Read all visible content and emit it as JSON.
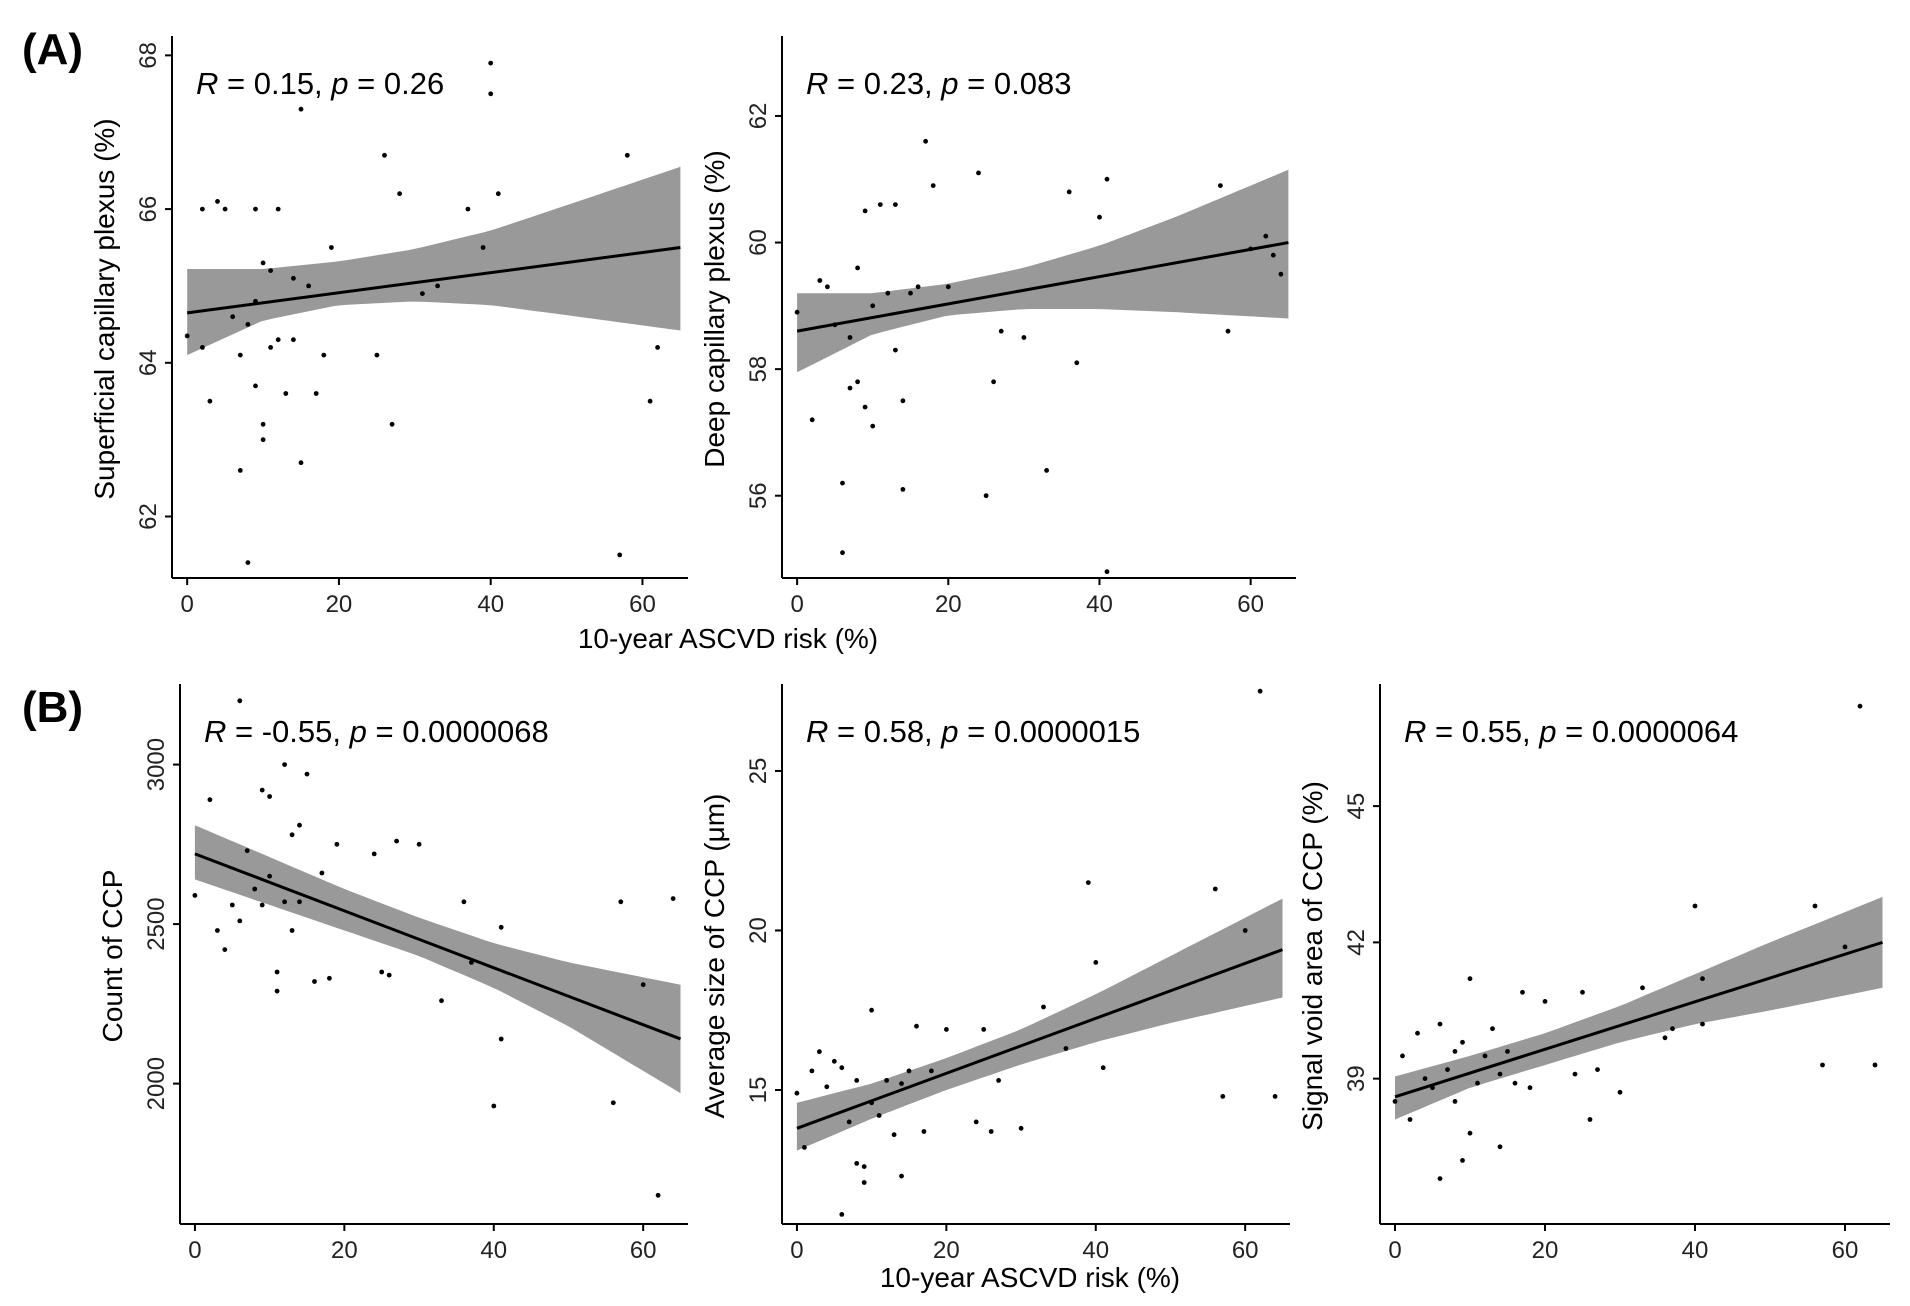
{
  "figure": {
    "panel_labels": [
      "(A)",
      "(B)"
    ],
    "shared_xlabel_A": "10-year ASCVD risk (%)",
    "shared_xlabel_B": "10-year ASCVD risk (%)",
    "colors": {
      "band": "#999999",
      "line": "#000000",
      "point": "#000000",
      "axis": "#000000"
    }
  },
  "chart_data": [
    {
      "type": "scatter",
      "panel": "A",
      "ylabel": "Superficial capillary plexus (%)",
      "xlabel": "",
      "stat": {
        "R_value": "0.15",
        "p_value": "0.26"
      },
      "xlim": [
        -2,
        66
      ],
      "ylim": [
        61.2,
        68.2
      ],
      "xticks": [
        0,
        20,
        40,
        60
      ],
      "yticks": [
        62,
        64,
        66,
        68
      ],
      "x": [
        0,
        2,
        2,
        3,
        4,
        5,
        6,
        7,
        7,
        8,
        8,
        9,
        9,
        9,
        10,
        10,
        10,
        11,
        11,
        12,
        12,
        13,
        14,
        14,
        15,
        15,
        16,
        17,
        18,
        19,
        25,
        26,
        27,
        28,
        31,
        33,
        37,
        39,
        40,
        40,
        41,
        57,
        58,
        61,
        62
      ],
      "y": [
        64.35,
        64.2,
        66.0,
        63.5,
        66.1,
        66.0,
        64.6,
        64.1,
        62.6,
        64.5,
        61.4,
        64.8,
        63.7,
        66.0,
        63.2,
        65.3,
        63.0,
        65.2,
        64.2,
        64.3,
        66.0,
        63.6,
        64.3,
        65.1,
        67.3,
        62.7,
        65.0,
        63.6,
        64.1,
        65.5,
        64.1,
        66.7,
        63.2,
        66.2,
        64.9,
        65.0,
        66.0,
        65.5,
        67.5,
        67.9,
        66.2,
        61.5,
        66.7,
        63.5,
        64.2
      ],
      "fit": {
        "x": [
          0,
          65
        ],
        "y": [
          64.65,
          65.5
        ]
      },
      "band": {
        "x": [
          0,
          10,
          20,
          30,
          40,
          50,
          65
        ],
        "lower": [
          64.1,
          64.55,
          64.75,
          64.8,
          64.75,
          64.62,
          64.42
        ],
        "upper": [
          65.22,
          65.22,
          65.32,
          65.48,
          65.72,
          66.05,
          66.55
        ]
      }
    },
    {
      "type": "scatter",
      "panel": "A",
      "ylabel": "Deep capillary plexus (%)",
      "xlabel": "",
      "stat": {
        "R_value": "0.23",
        "p_value": "0.083"
      },
      "xlim": [
        -2,
        66
      ],
      "ylim": [
        54.7,
        63.2
      ],
      "xticks": [
        0,
        20,
        40,
        60
      ],
      "yticks": [
        56,
        58,
        60,
        62
      ],
      "x": [
        0,
        2,
        3,
        4,
        5,
        6,
        6,
        7,
        7,
        8,
        8,
        9,
        9,
        10,
        10,
        11,
        12,
        13,
        13,
        14,
        14,
        15,
        16,
        17,
        18,
        20,
        24,
        25,
        26,
        27,
        30,
        33,
        36,
        37,
        40,
        41,
        41,
        56,
        57,
        60,
        62,
        63,
        64
      ],
      "y": [
        58.9,
        57.2,
        59.4,
        59.3,
        58.7,
        56.2,
        55.1,
        58.5,
        57.7,
        59.6,
        57.8,
        57.4,
        60.5,
        57.1,
        59.0,
        60.6,
        59.2,
        58.3,
        60.6,
        57.5,
        56.1,
        59.2,
        59.3,
        61.6,
        60.9,
        59.3,
        61.1,
        56.0,
        57.8,
        58.6,
        58.5,
        56.4,
        60.8,
        58.1,
        60.4,
        61.0,
        54.8,
        60.9,
        58.6,
        59.9,
        60.1,
        59.8,
        59.5
      ],
      "fit": {
        "x": [
          0,
          65
        ],
        "y": [
          58.6,
          60.0
        ]
      },
      "band": {
        "x": [
          0,
          10,
          20,
          30,
          40,
          50,
          65
        ],
        "lower": [
          57.95,
          58.55,
          58.85,
          58.95,
          58.95,
          58.9,
          58.8
        ],
        "upper": [
          59.2,
          59.2,
          59.35,
          59.6,
          59.95,
          60.4,
          61.15
        ]
      }
    },
    {
      "type": "scatter",
      "panel": "B",
      "ylabel": "Count of CCP",
      "xlabel": "",
      "stat": {
        "R_value": "-0.55",
        "p_value": "0.0000068"
      },
      "xlim": [
        -2,
        66
      ],
      "ylim": [
        1560,
        3240
      ],
      "xticks": [
        0,
        20,
        40,
        60
      ],
      "yticks": [
        2000,
        2500,
        3000
      ],
      "x": [
        0,
        2,
        3,
        4,
        5,
        6,
        6,
        7,
        8,
        9,
        9,
        10,
        10,
        11,
        11,
        12,
        12,
        13,
        13,
        14,
        14,
        15,
        16,
        17,
        18,
        19,
        24,
        25,
        26,
        27,
        30,
        33,
        36,
        37,
        40,
        41,
        41,
        56,
        57,
        60,
        62,
        64
      ],
      "y": [
        2590,
        2890,
        2480,
        2420,
        2560,
        2510,
        3200,
        2730,
        2610,
        2920,
        2560,
        2900,
        2650,
        2290,
        2350,
        2570,
        3000,
        2780,
        2480,
        2570,
        2810,
        2970,
        2320,
        2660,
        2330,
        2750,
        2720,
        2350,
        2340,
        2760,
        2750,
        2260,
        2570,
        2380,
        1930,
        2140,
        2490,
        1940,
        2570,
        2310,
        1650,
        2580
      ],
      "fit": {
        "x": [
          0,
          65
        ],
        "y": [
          2720,
          2140
        ]
      },
      "band": {
        "x": [
          0,
          10,
          20,
          30,
          40,
          50,
          65
        ],
        "lower": [
          2640,
          2560,
          2480,
          2400,
          2300,
          2180,
          1970
        ],
        "upper": [
          2810,
          2710,
          2610,
          2520,
          2440,
          2380,
          2310
        ]
      }
    },
    {
      "type": "scatter",
      "panel": "B",
      "ylabel": "Average size of CCP (μm)",
      "xlabel": "",
      "stat": {
        "R_value": "0.58",
        "p_value": "0.0000015"
      },
      "xlim": [
        -2,
        66
      ],
      "ylim": [
        10.8,
        27.6
      ],
      "xticks": [
        0,
        20,
        40,
        60
      ],
      "yticks": [
        15,
        20,
        25
      ],
      "x": [
        0,
        1,
        2,
        3,
        4,
        5,
        6,
        6,
        7,
        8,
        8,
        9,
        9,
        10,
        10,
        11,
        12,
        13,
        14,
        14,
        15,
        16,
        17,
        18,
        20,
        24,
        25,
        26,
        27,
        30,
        33,
        36,
        39,
        40,
        41,
        56,
        57,
        60,
        62,
        64
      ],
      "y": [
        14.9,
        13.2,
        15.6,
        16.2,
        15.1,
        15.9,
        15.7,
        11.1,
        14.0,
        12.7,
        15.3,
        12.6,
        12.1,
        17.5,
        14.6,
        14.2,
        15.3,
        13.6,
        15.2,
        12.3,
        15.6,
        17.0,
        13.7,
        15.6,
        16.9,
        14.0,
        16.9,
        13.7,
        15.3,
        13.8,
        17.6,
        16.3,
        21.5,
        19.0,
        15.7,
        21.3,
        14.8,
        20.0,
        27.5,
        14.8
      ],
      "fit": {
        "x": [
          0,
          65
        ],
        "y": [
          13.8,
          19.4
        ]
      },
      "band": {
        "x": [
          0,
          10,
          20,
          30,
          40,
          50,
          65
        ],
        "lower": [
          13.1,
          14.1,
          15.0,
          15.8,
          16.5,
          17.1,
          17.9
        ],
        "upper": [
          14.6,
          15.2,
          16.0,
          16.9,
          18.0,
          19.2,
          21.0
        ]
      }
    },
    {
      "type": "scatter",
      "panel": "B",
      "ylabel": "Signal void area of CCP (%)",
      "xlabel": "",
      "stat": {
        "R_value": "0.55",
        "p_value": "0.0000064"
      },
      "xlim": [
        -2,
        66
      ],
      "ylim": [
        35.8,
        47.6
      ],
      "xticks": [
        0,
        20,
        40,
        60
      ],
      "yticks": [
        39,
        42,
        45
      ],
      "x": [
        0,
        1,
        2,
        3,
        4,
        5,
        6,
        6,
        7,
        8,
        8,
        9,
        9,
        10,
        10,
        11,
        12,
        13,
        14,
        14,
        15,
        16,
        17,
        18,
        20,
        24,
        25,
        26,
        27,
        30,
        33,
        36,
        37,
        40,
        41,
        41,
        56,
        57,
        60,
        62,
        64
      ],
      "y": [
        38.5,
        39.5,
        38.1,
        40.0,
        39.0,
        38.8,
        40.2,
        36.8,
        39.2,
        39.6,
        38.5,
        37.2,
        39.8,
        37.8,
        41.2,
        38.9,
        39.5,
        40.1,
        37.5,
        39.1,
        39.6,
        38.9,
        40.9,
        38.8,
        40.7,
        39.1,
        40.9,
        38.1,
        39.2,
        38.7,
        41.0,
        39.9,
        40.1,
        42.8,
        40.2,
        41.2,
        42.8,
        39.3,
        41.9,
        47.2,
        39.3
      ],
      "fit": {
        "x": [
          0,
          65
        ],
        "y": [
          38.6,
          42.0
        ]
      },
      "band": {
        "x": [
          0,
          10,
          20,
          30,
          40,
          50,
          65
        ],
        "lower": [
          38.1,
          38.8,
          39.3,
          39.8,
          40.2,
          40.5,
          41.0
        ],
        "upper": [
          39.05,
          39.5,
          40.0,
          40.6,
          41.3,
          42.0,
          43.0
        ]
      }
    }
  ]
}
